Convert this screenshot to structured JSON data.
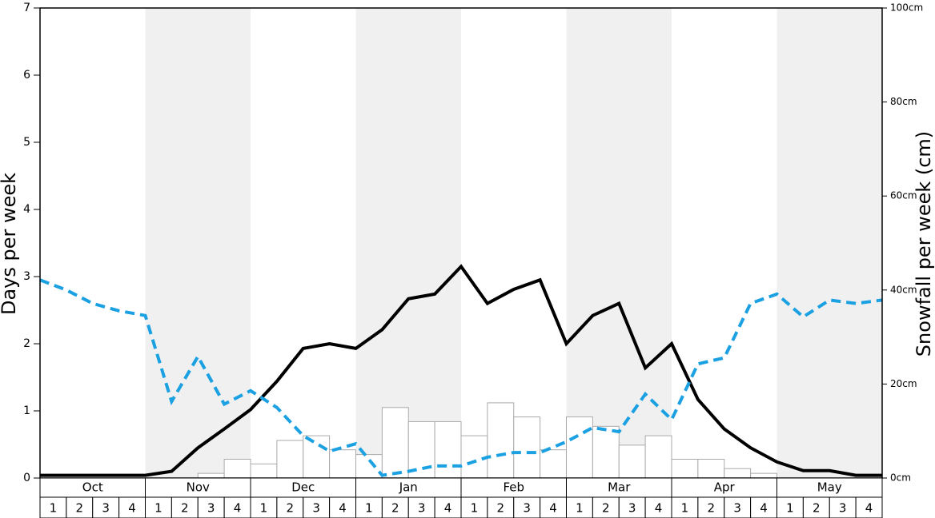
{
  "chart_data": {
    "type": "combo",
    "ylabel": "Days per week",
    "y2label": "Snowfall per week (cm)",
    "ylim": [
      0,
      7
    ],
    "yticks": [
      0,
      1,
      2,
      3,
      4,
      5,
      6,
      7
    ],
    "y2lim": [
      0,
      100
    ],
    "y2ticks": [
      {
        "value": 0,
        "label": "0cm"
      },
      {
        "value": 20,
        "label": "20cm"
      },
      {
        "value": 40,
        "label": "40cm"
      },
      {
        "value": 60,
        "label": "60cm"
      },
      {
        "value": 80,
        "label": "80cm"
      },
      {
        "value": 100,
        "label": "100cm"
      }
    ],
    "months": [
      "Oct",
      "Nov",
      "Dec",
      "Jan",
      "Feb",
      "Mar",
      "Apr",
      "May"
    ],
    "categories": [
      "1",
      "2",
      "3",
      "4",
      "1",
      "2",
      "3",
      "4",
      "1",
      "2",
      "3",
      "4",
      "1",
      "2",
      "3",
      "4",
      "1",
      "2",
      "3",
      "4",
      "1",
      "2",
      "3",
      "4",
      "1",
      "2",
      "3",
      "4",
      "1",
      "2",
      "3",
      "4"
    ],
    "bars": {
      "axis": "y2",
      "color": "#ffffff",
      "values": [
        0,
        0,
        0,
        0,
        0,
        0,
        1,
        4,
        3,
        8,
        9,
        6,
        5,
        15,
        12,
        12,
        9,
        16,
        13,
        6,
        13,
        11,
        7,
        9,
        4,
        4,
        2,
        1,
        0,
        0,
        0,
        0
      ]
    },
    "xlim": [
      0,
      32
    ],
    "series": [
      {
        "color": "#000000",
        "dashed": false,
        "x": [
          0,
          1,
          2,
          3,
          4,
          5,
          6,
          7,
          8,
          9,
          10,
          11,
          12,
          13,
          14,
          15,
          16,
          17,
          18,
          19,
          20,
          21,
          22,
          23,
          24,
          25,
          26,
          27,
          28,
          29,
          30,
          31,
          32
        ],
        "values": [
          0.04,
          0.04,
          0.04,
          0.04,
          0.04,
          0.1,
          0.45,
          0.73,
          1.02,
          1.44,
          1.93,
          2.0,
          1.93,
          2.21,
          2.67,
          2.74,
          3.15,
          2.6,
          2.81,
          2.95,
          2.0,
          2.42,
          2.6,
          1.64,
          2.0,
          1.17,
          0.73,
          0.45,
          0.24,
          0.11,
          0.11,
          0.04,
          0.04
        ]
      },
      {
        "color": "#1ba1e2",
        "dashed": true,
        "x": [
          0,
          1,
          2,
          3,
          4,
          5,
          6,
          7,
          8,
          9,
          10,
          11,
          12,
          13,
          14,
          15,
          16,
          17,
          18,
          19,
          20,
          21,
          22,
          23,
          24,
          25,
          26,
          27,
          28,
          29,
          30,
          31,
          32
        ],
        "values": [
          2.95,
          2.8,
          2.6,
          2.49,
          2.42,
          1.14,
          1.81,
          1.1,
          1.3,
          1.05,
          0.63,
          0.4,
          0.51,
          0.04,
          0.1,
          0.18,
          0.18,
          0.31,
          0.38,
          0.38,
          0.54,
          0.75,
          0.69,
          1.25,
          0.87,
          1.7,
          1.79,
          2.6,
          2.74,
          2.4,
          2.65,
          2.6,
          2.65
        ]
      }
    ]
  }
}
